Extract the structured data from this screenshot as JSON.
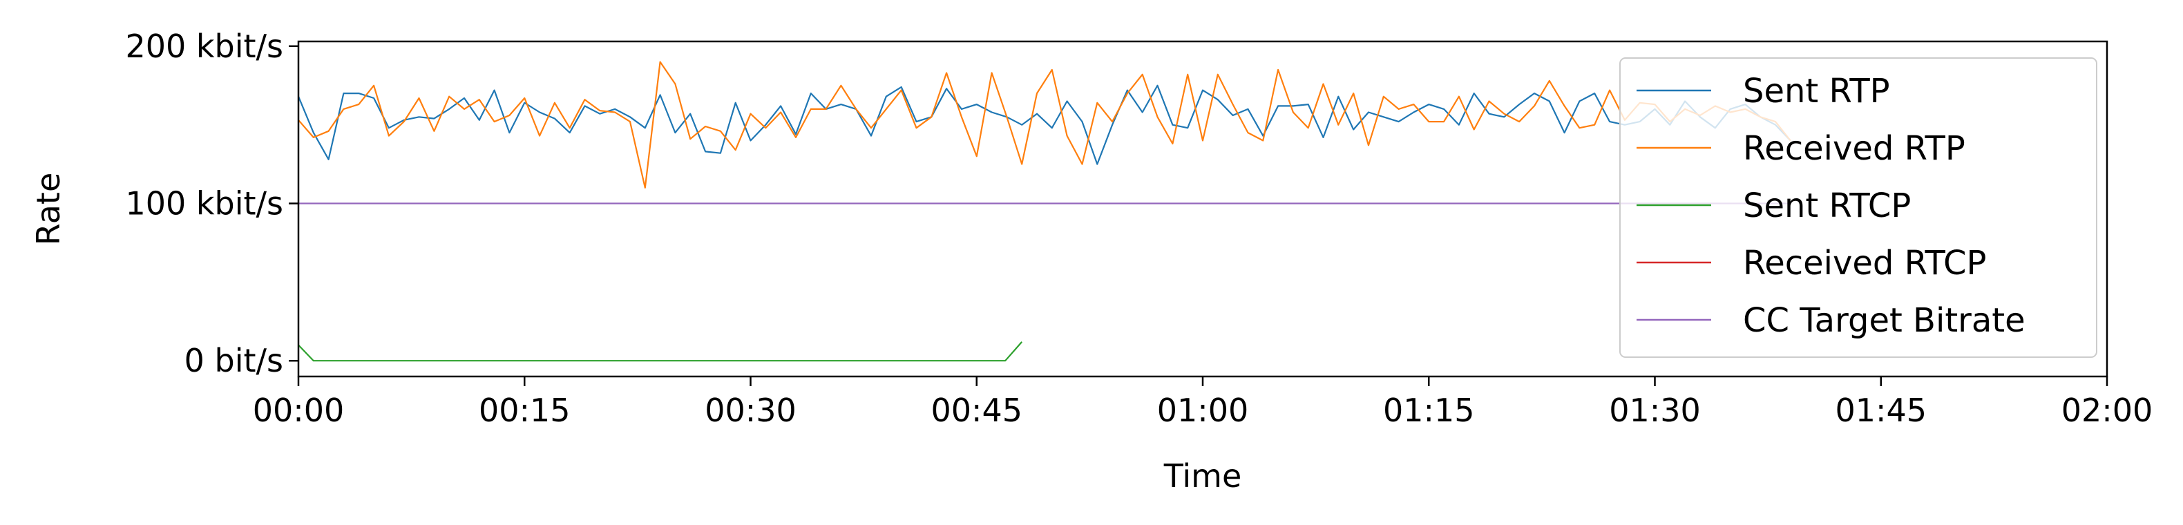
{
  "chart_data": {
    "type": "line",
    "xlabel": "Time",
    "ylabel": "Rate",
    "x_unit": "seconds",
    "xlim": [
      0,
      120
    ],
    "ylim": [
      -10,
      203
    ],
    "x_ticks": [
      {
        "value": 0,
        "label": "00:00"
      },
      {
        "value": 15,
        "label": "00:15"
      },
      {
        "value": 30,
        "label": "00:30"
      },
      {
        "value": 45,
        "label": "00:45"
      },
      {
        "value": 60,
        "label": "01:00"
      },
      {
        "value": 75,
        "label": "01:15"
      },
      {
        "value": 90,
        "label": "01:30"
      },
      {
        "value": 105,
        "label": "01:45"
      },
      {
        "value": 120,
        "label": "02:00"
      }
    ],
    "y_ticks": [
      {
        "value": 0,
        "label": "0 bit/s"
      },
      {
        "value": 100,
        "label": "100 kbit/s"
      },
      {
        "value": 200,
        "label": "200 kbit/s"
      }
    ],
    "legend_position": "top-right",
    "grid": false,
    "series": [
      {
        "name": "Sent RTP",
        "color": "#1f77b4",
        "x": [
          0,
          1,
          2,
          3,
          4,
          5,
          6,
          7,
          8,
          9,
          10,
          11,
          12,
          13,
          14,
          15,
          16,
          17,
          18,
          19,
          20,
          21,
          22,
          23,
          24,
          25,
          26,
          27,
          28,
          29,
          30,
          31,
          32,
          33,
          34,
          35,
          36,
          37,
          38,
          39,
          40,
          41,
          42,
          43,
          44,
          45,
          46,
          47,
          48,
          49,
          50,
          51,
          52,
          53,
          54,
          55,
          56,
          57,
          58,
          59,
          60,
          61,
          62,
          63,
          64,
          65,
          66,
          67,
          68,
          69,
          70,
          71,
          72,
          73,
          74,
          75,
          76,
          77,
          78,
          79,
          80,
          81,
          82,
          83,
          84,
          85,
          86,
          87,
          88,
          89,
          90,
          91,
          92,
          93,
          94,
          95,
          96,
          97,
          98,
          99
        ],
        "values": [
          168,
          145,
          128,
          170,
          170,
          167,
          148,
          153,
          155,
          154,
          160,
          167,
          153,
          172,
          145,
          164,
          158,
          154,
          145,
          162,
          157,
          160,
          155,
          148,
          169,
          145,
          157,
          133,
          132,
          164,
          140,
          150,
          162,
          144,
          170,
          160,
          163,
          160,
          143,
          168,
          174,
          152,
          155,
          173,
          160,
          163,
          158,
          155,
          150,
          157,
          148,
          165,
          152,
          125,
          150,
          172,
          158,
          175,
          150,
          148,
          172,
          166,
          156,
          160,
          143,
          162,
          162,
          163,
          142,
          168,
          147,
          158,
          155,
          152,
          158,
          163,
          160,
          150,
          170,
          157,
          155,
          163,
          170,
          165,
          145,
          165,
          170,
          152,
          150,
          152,
          160,
          150,
          165,
          155,
          148,
          160,
          163,
          155,
          150,
          140
        ]
      },
      {
        "name": "Received RTP",
        "color": "#ff7f0e",
        "x": [
          0,
          1,
          2,
          3,
          4,
          5,
          6,
          7,
          8,
          9,
          10,
          11,
          12,
          13,
          14,
          15,
          16,
          17,
          18,
          19,
          20,
          21,
          22,
          23,
          24,
          25,
          26,
          27,
          28,
          29,
          30,
          31,
          32,
          33,
          34,
          35,
          36,
          37,
          38,
          39,
          40,
          41,
          42,
          43,
          44,
          45,
          46,
          47,
          48,
          49,
          50,
          51,
          52,
          53,
          54,
          55,
          56,
          57,
          58,
          59,
          60,
          61,
          62,
          63,
          64,
          65,
          66,
          67,
          68,
          69,
          70,
          71,
          72,
          73,
          74,
          75,
          76,
          77,
          78,
          79,
          80,
          81,
          82,
          83,
          84,
          85,
          86,
          87,
          88,
          89,
          90,
          91,
          92,
          93,
          94,
          95,
          96,
          97,
          98,
          99
        ],
        "values": [
          153,
          142,
          146,
          160,
          163,
          175,
          143,
          152,
          167,
          146,
          168,
          160,
          166,
          152,
          156,
          167,
          143,
          164,
          148,
          166,
          159,
          158,
          152,
          110,
          190,
          176,
          141,
          149,
          146,
          134,
          157,
          148,
          158,
          142,
          160,
          160,
          175,
          160,
          148,
          160,
          172,
          148,
          155,
          183,
          155,
          130,
          183,
          155,
          125,
          170,
          185,
          143,
          125,
          164,
          152,
          170,
          182,
          155,
          138,
          182,
          140,
          182,
          163,
          145,
          140,
          185,
          158,
          148,
          176,
          150,
          170,
          137,
          168,
          160,
          163,
          152,
          152,
          168,
          147,
          165,
          157,
          152,
          162,
          178,
          162,
          148,
          150,
          172,
          153,
          164,
          163,
          152,
          160,
          156,
          162,
          158,
          160,
          155,
          152,
          140
        ]
      },
      {
        "name": "Sent RTCP",
        "color": "#2ca02c",
        "x": [
          0,
          1,
          46.9,
          48
        ],
        "values": [
          10,
          0,
          0,
          12
        ]
      },
      {
        "name": "Received RTCP",
        "color": "#d62728",
        "x": [],
        "values": []
      },
      {
        "name": "CC Target Bitrate",
        "color": "#9467bd",
        "x": [
          0,
          99
        ],
        "values": [
          100,
          100
        ]
      }
    ]
  }
}
